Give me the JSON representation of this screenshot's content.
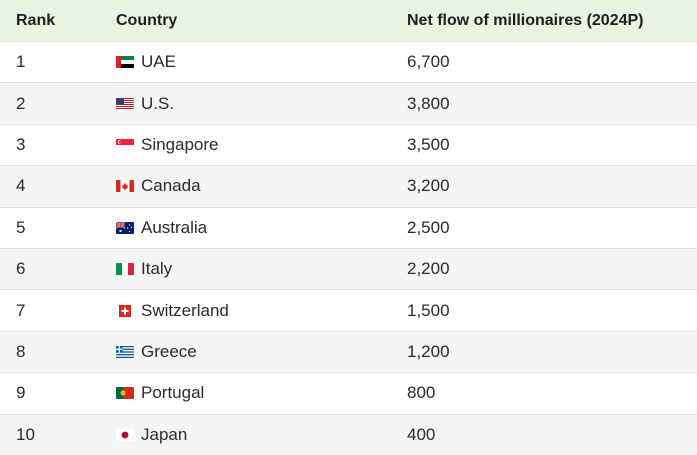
{
  "table": {
    "headers": {
      "rank": "Rank",
      "country": "Country",
      "flow": "Net flow of millionaires (2024P)"
    },
    "rows": [
      {
        "rank": "1",
        "country": "UAE",
        "flag": "uae-flag-icon",
        "flow": "6,700"
      },
      {
        "rank": "2",
        "country": "U.S.",
        "flag": "us-flag-icon",
        "flow": "3,800"
      },
      {
        "rank": "3",
        "country": "Singapore",
        "flag": "singapore-flag-icon",
        "flow": "3,500"
      },
      {
        "rank": "4",
        "country": "Canada",
        "flag": "canada-flag-icon",
        "flow": "3,200"
      },
      {
        "rank": "5",
        "country": "Australia",
        "flag": "australia-flag-icon",
        "flow": "2,500"
      },
      {
        "rank": "6",
        "country": "Italy",
        "flag": "italy-flag-icon",
        "flow": "2,200"
      },
      {
        "rank": "7",
        "country": "Switzerland",
        "flag": "switzerland-flag-icon",
        "flow": "1,500"
      },
      {
        "rank": "8",
        "country": "Greece",
        "flag": "greece-flag-icon",
        "flow": "1,200"
      },
      {
        "rank": "9",
        "country": "Portugal",
        "flag": "portugal-flag-icon",
        "flow": "800"
      },
      {
        "rank": "10",
        "country": "Japan",
        "flag": "japan-flag-icon",
        "flow": "400"
      }
    ]
  },
  "colors": {
    "header_bg": "#e8f3e1",
    "alt_row_bg": "#f5f5f5"
  }
}
